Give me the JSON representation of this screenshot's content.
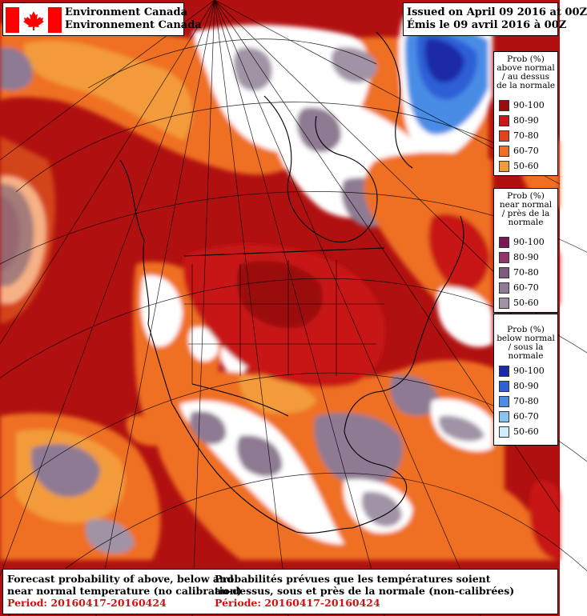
{
  "header": {
    "agency_en": "Environment Canada",
    "agency_fr": "Environnement Canada",
    "issued_en": "Issued on April 09 2016 at 00Z",
    "issued_fr": "Émis le 09 avril 2016 à 00Z"
  },
  "legends": [
    {
      "title": [
        "Prob (%)",
        "above normal",
        "/ au dessus",
        "de la normale"
      ],
      "items": [
        {
          "label": "90-100",
          "color": "#9b0d0d"
        },
        {
          "label": "80-90",
          "color": "#c81818"
        },
        {
          "label": "70-80",
          "color": "#e0441a"
        },
        {
          "label": "60-70",
          "color": "#ef7020"
        },
        {
          "label": "50-60",
          "color": "#f39b3a"
        }
      ]
    },
    {
      "title": [
        "Prob (%)",
        "near normal",
        "/ près de la",
        "normale"
      ],
      "items": [
        {
          "label": "90-100",
          "color": "#7a1a52"
        },
        {
          "label": "80-90",
          "color": "#93356b"
        },
        {
          "label": "70-80",
          "color": "#7e5b7c"
        },
        {
          "label": "60-70",
          "color": "#8e7a92"
        },
        {
          "label": "50-60",
          "color": "#a193a6"
        }
      ]
    },
    {
      "title": [
        "Prob (%)",
        "below normal",
        "/ sous la normale"
      ],
      "items": [
        {
          "label": "90-100",
          "color": "#1a2aa8"
        },
        {
          "label": "80-90",
          "color": "#2e5fd6"
        },
        {
          "label": "70-80",
          "color": "#4a8ce6"
        },
        {
          "label": "60-70",
          "color": "#88c4ee"
        },
        {
          "label": "50-60",
          "color": "#cdeefa"
        }
      ]
    }
  ],
  "footer": {
    "en_line1": "Forecast probability of above, below and",
    "en_line2": "near normal temperature (no calibration)",
    "en_period": "Period: 20160417-20160424",
    "fr_line1": "Probabilités prévues que les températures soient",
    "fr_line2": "au-dessus, sous et près de la normale (non-calibrées)",
    "fr_period": "Période: 20160417-20160424"
  },
  "colors": {
    "background_red": "#b01010",
    "flag_red": "#ff0000",
    "period_text": "#d21010"
  }
}
